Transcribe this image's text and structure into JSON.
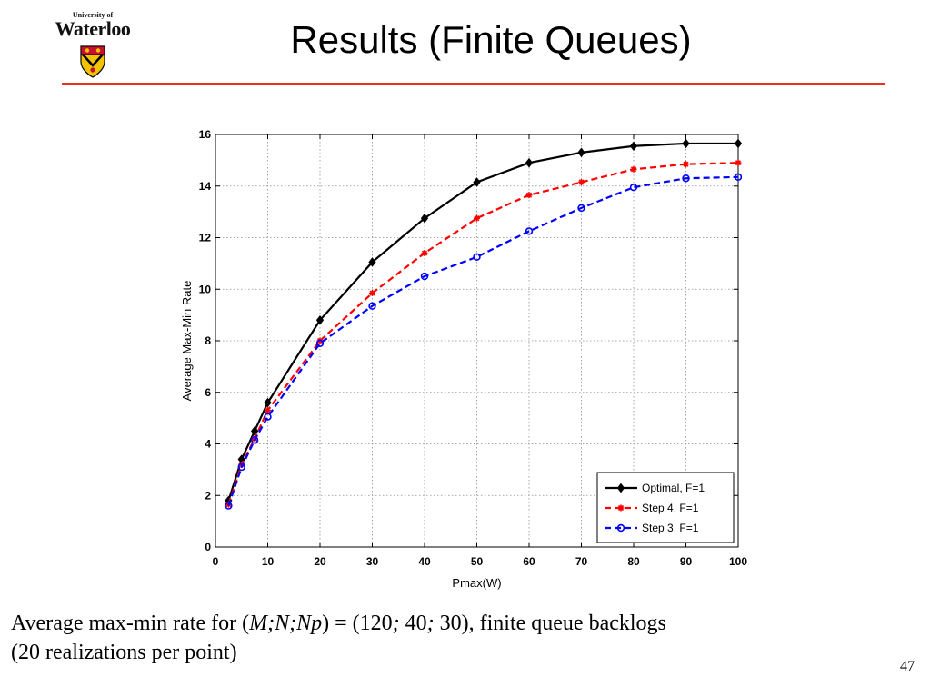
{
  "header": {
    "logo_small": "University of",
    "logo_big": "Waterloo",
    "title": "Results (Finite Queues)"
  },
  "caption": {
    "prefix": "Average max-min rate for (",
    "vars": "M;N;Np",
    "mid": ") = (120",
    "sep1": ";",
    "v2": " 40",
    "sep2": ";",
    "suffix": " 30), finite queue backlogs",
    "line2": "(20 realizations per point)"
  },
  "page_number": "47",
  "colors": {
    "accent_rule": "#e8321e"
  },
  "chart_data": {
    "type": "line",
    "xlabel": "Pmax(W)",
    "ylabel": "Average Max-Min Rate",
    "xlim": [
      0,
      100
    ],
    "ylim": [
      0,
      16
    ],
    "xticks": [
      0,
      10,
      20,
      30,
      40,
      50,
      60,
      70,
      80,
      90,
      100
    ],
    "yticks": [
      0,
      2,
      4,
      6,
      8,
      10,
      12,
      14,
      16
    ],
    "grid": true,
    "legend_position": "bottom-right",
    "x": [
      2.5,
      5,
      7.5,
      10,
      20,
      30,
      40,
      50,
      60,
      70,
      80,
      90,
      100
    ],
    "series": [
      {
        "name": "Optimal, F=1",
        "color": "#000000",
        "dash": "solid",
        "marker": "diamond",
        "values": [
          1.8,
          3.4,
          4.5,
          5.6,
          8.8,
          11.05,
          12.75,
          14.15,
          14.9,
          15.3,
          15.55,
          15.65,
          15.65
        ]
      },
      {
        "name": "Step 4, F=1",
        "color": "#ff0000",
        "dash": "dashed",
        "marker": "star",
        "values": [
          1.65,
          3.2,
          4.2,
          5.3,
          8.0,
          9.85,
          11.4,
          12.75,
          13.65,
          14.15,
          14.65,
          14.85,
          14.9
        ]
      },
      {
        "name": "Step 3, F=1",
        "color": "#0000ff",
        "dash": "dashed",
        "marker": "circle",
        "values": [
          1.6,
          3.1,
          4.15,
          5.05,
          7.9,
          9.35,
          10.5,
          11.25,
          12.25,
          13.15,
          13.95,
          14.3,
          14.35
        ]
      }
    ]
  }
}
